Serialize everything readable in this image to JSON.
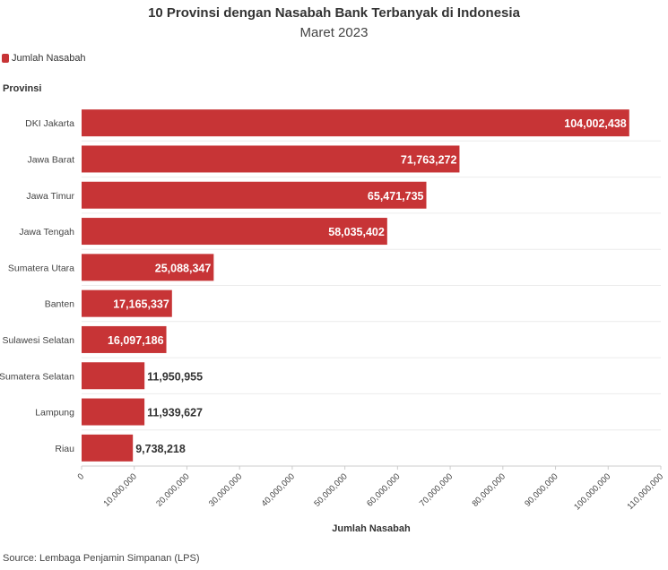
{
  "chart_data": {
    "type": "bar",
    "orientation": "horizontal",
    "title": "10 Provinsi dengan Nasabah Bank Terbanyak di Indonesia",
    "subtitle": "Maret 2023",
    "ylabel": "Provinsi",
    "xlabel": "Jumlah Nasabah",
    "categories": [
      "DKI Jakarta",
      "Jawa Barat",
      "Jawa Timur",
      "Jawa Tengah",
      "Sumatera Utara",
      "Banten",
      "Sulawesi Selatan",
      "Sumatera Selatan",
      "Lampung",
      "Riau"
    ],
    "series": [
      {
        "name": "Jumlah Nasabah",
        "values": [
          104002438,
          71763272,
          65471735,
          58035402,
          25088347,
          17165337,
          16097186,
          11950955,
          11939627,
          9738218
        ]
      }
    ],
    "value_labels": [
      "104,002,438",
      "71,763,272",
      "65,471,735",
      "58,035,402",
      "25,088,347",
      "17,165,337",
      "16,097,186",
      "11,950,955",
      "11,939,627",
      "9,738,218"
    ],
    "xlim": [
      0,
      110000000
    ],
    "xticks": [
      0,
      10000000,
      20000000,
      30000000,
      40000000,
      50000000,
      60000000,
      70000000,
      80000000,
      90000000,
      100000000,
      110000000
    ],
    "xtick_labels": [
      "0",
      "10,000,000",
      "20,000,000",
      "30,000,000",
      "40,000,000",
      "50,000,000",
      "60,000,000",
      "70,000,000",
      "80,000,000",
      "90,000,000",
      "100,000,000",
      "110,000,000"
    ],
    "legend": {
      "label": "Jumlah Nasabah",
      "position": "top-left"
    },
    "grid": true,
    "bar_color": "#c73436",
    "source": "Source: Lembaga Penjamin Simpanan (LPS)"
  }
}
